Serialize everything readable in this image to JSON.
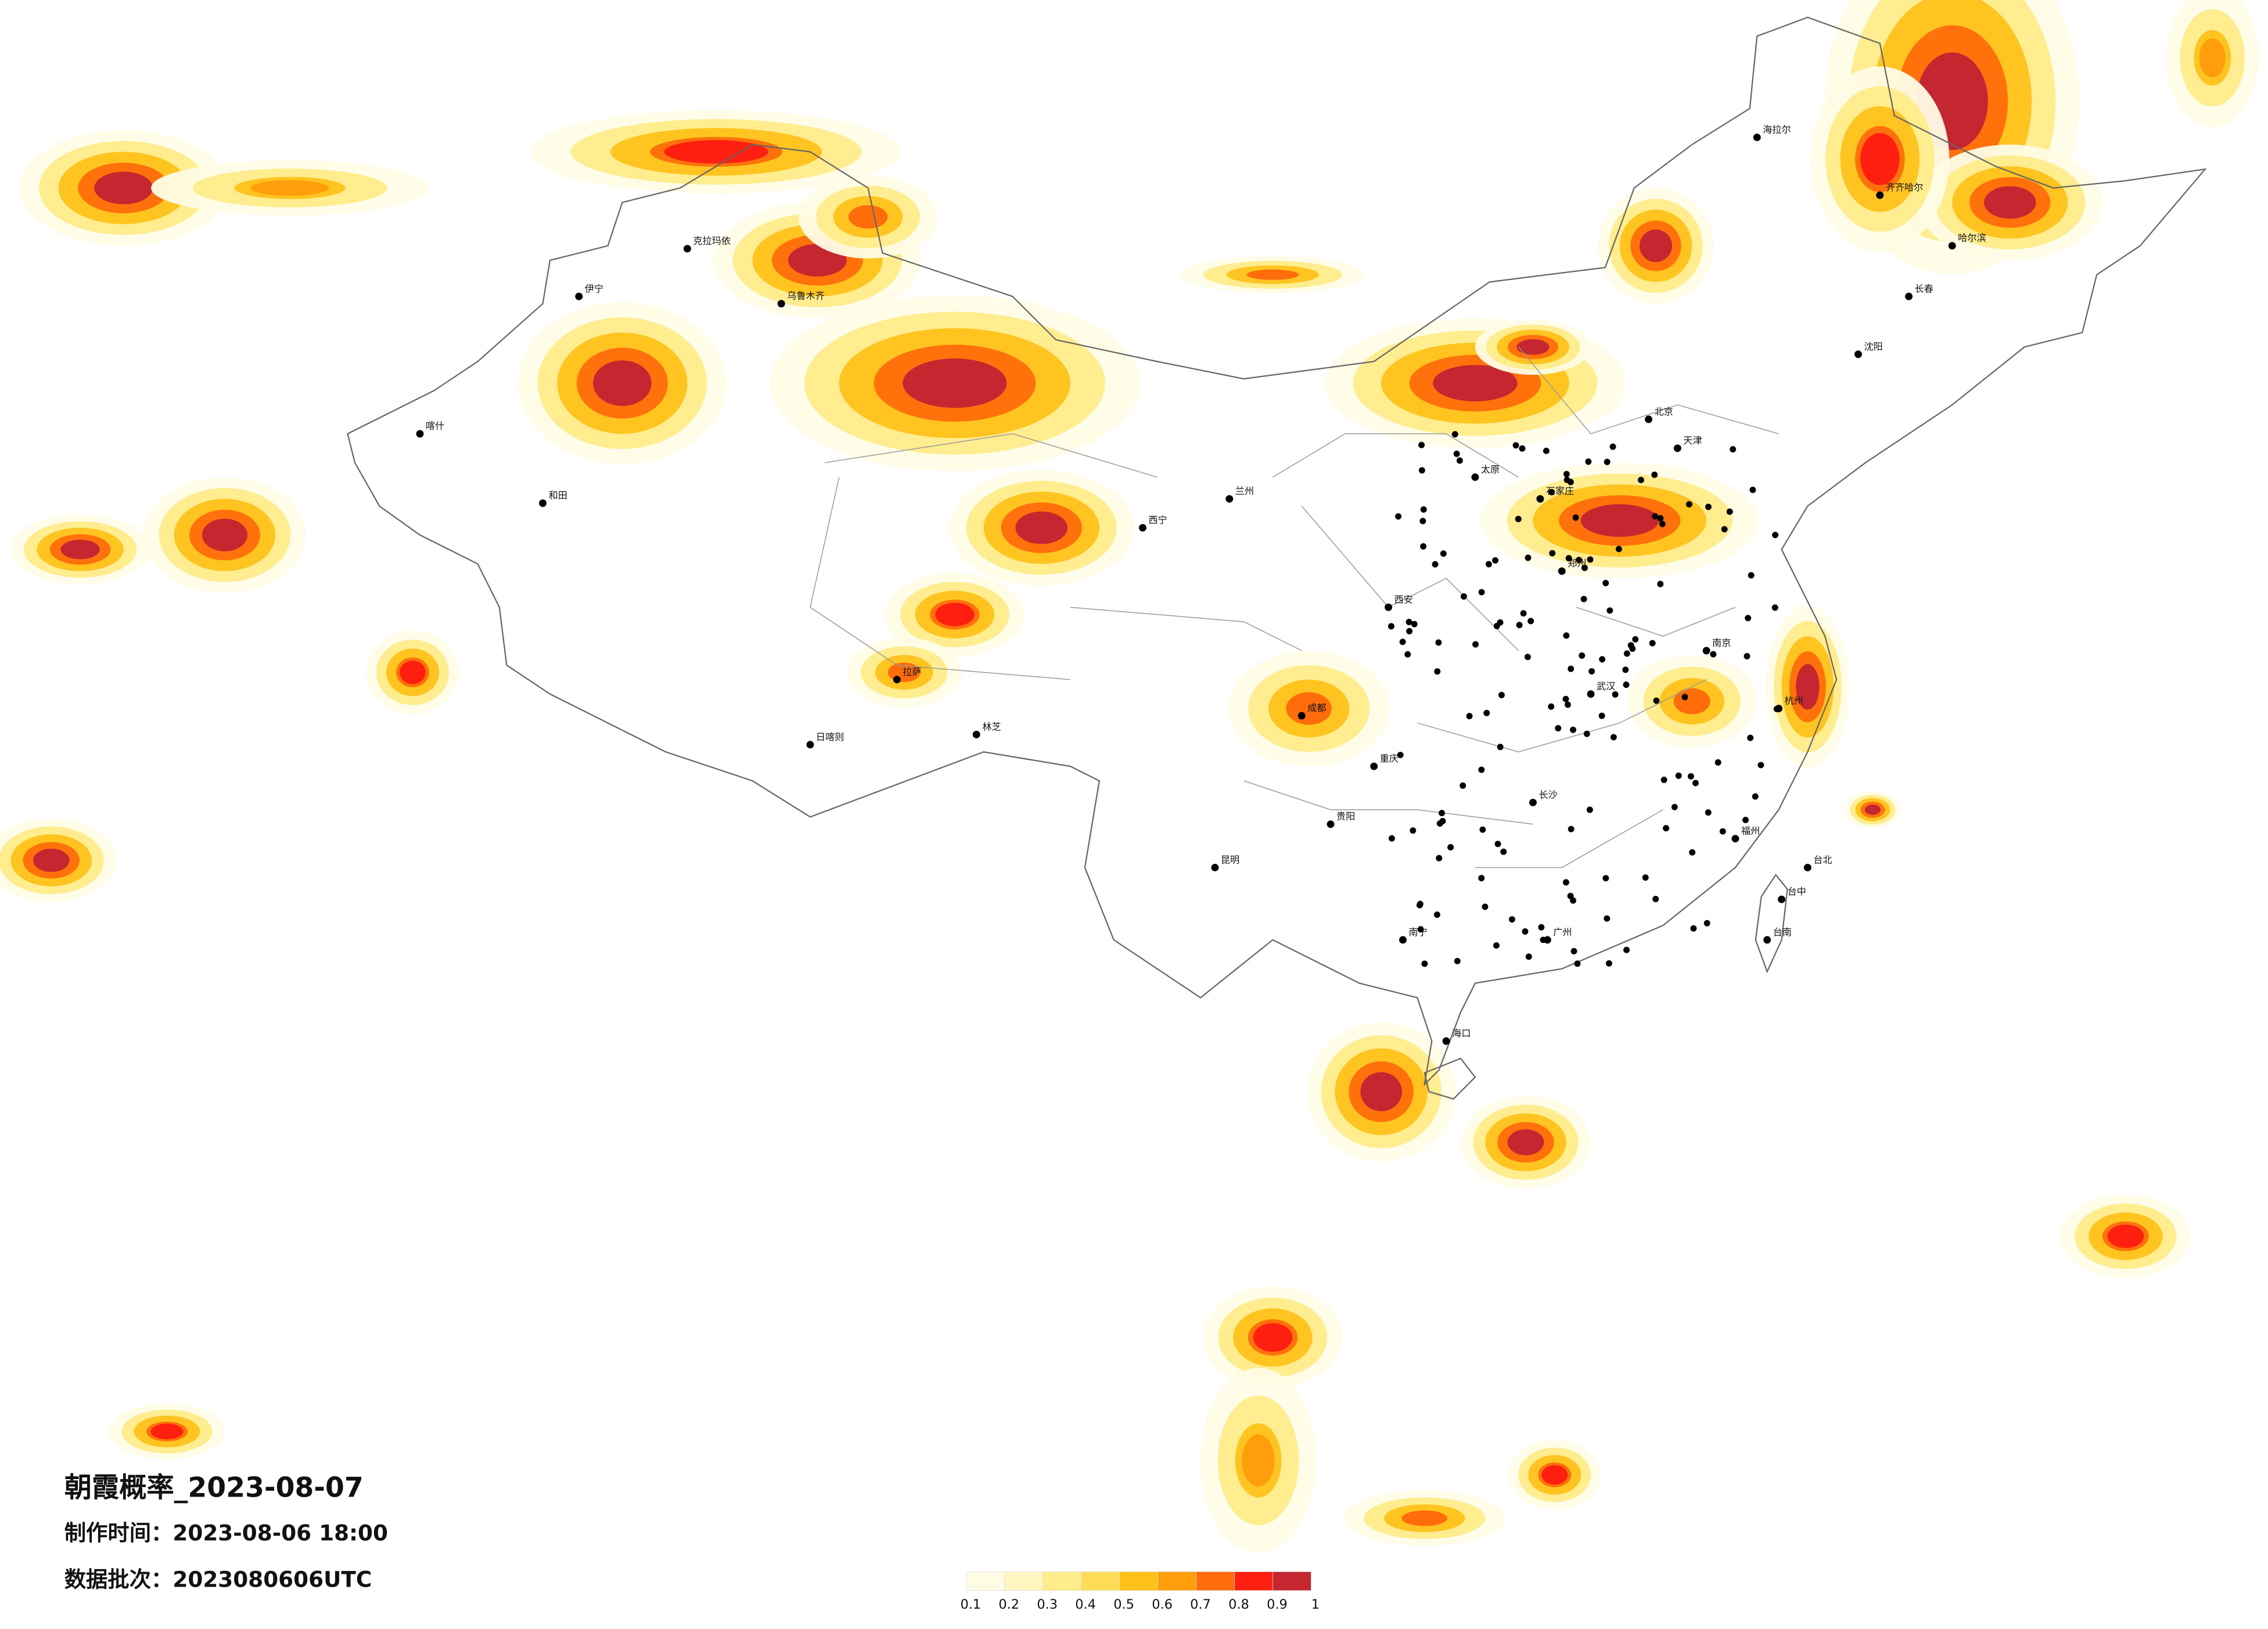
{
  "header": {
    "title": "朝霞概率_2023-08-07",
    "made_label": "制作时间：",
    "made_time": "2023-08-06 18:00",
    "batch_label": "数据批次：",
    "batch": "2023080606UTC"
  },
  "legend": {
    "colors": [
      "#fffce6",
      "#fff6c2",
      "#ffec8a",
      "#ffdc55",
      "#ffc21a",
      "#ff9e0a",
      "#ff6d0a",
      "#ff1f10",
      "#c4272f"
    ],
    "ticks": [
      0.1,
      0.2,
      0.3,
      0.4,
      0.5,
      0.6,
      0.7,
      0.8,
      0.9,
      1
    ]
  },
  "cities": [
    "海拉尔",
    "齐齐哈尔",
    "哈尔滨",
    "长春",
    "沈阳",
    "北京",
    "天津",
    "石家庄",
    "太原",
    "郑州",
    "西安",
    "兰州",
    "西宁",
    "成都",
    "重庆",
    "贵阳",
    "昆明",
    "南宁",
    "广州",
    "长沙",
    "武汉",
    "南京",
    "杭州",
    "福州",
    "台北",
    "台中",
    "台南",
    "乌鲁木齐",
    "克拉玛依",
    "伊宁",
    "喀什",
    "和田",
    "拉萨",
    "日喀则",
    "林芝",
    "海口"
  ]
}
